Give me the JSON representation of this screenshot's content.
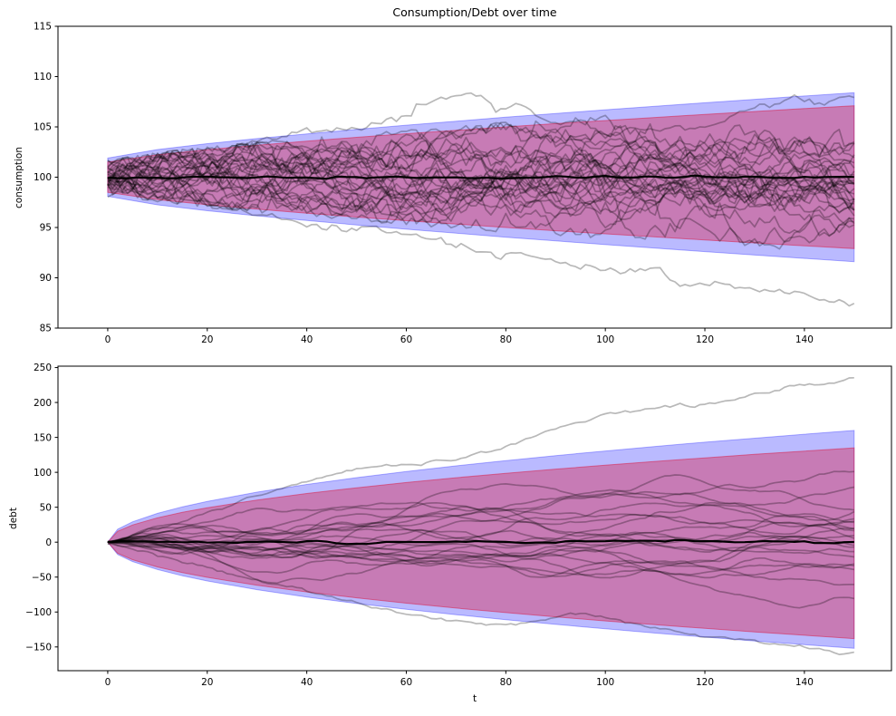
{
  "figure": {
    "title": "Consumption/Debt over time",
    "background": "#ffffff"
  },
  "styles": {
    "outer_band_fill": "rgba(0,0,255,0.27)",
    "outer_band_edge": "rgba(0,0,255,0.30)",
    "inner_band_fill": "rgba(220,20,60,0.38)",
    "inner_band_edge": "rgba(220,20,60,0.50)",
    "path_color": "rgba(0,0,0,0.28)",
    "mean_color": "#000000",
    "axis_color": "#000000",
    "text_color": "#000000"
  },
  "chart_data": [
    {
      "type": "line",
      "name": "consumption",
      "title": "Consumption/Debt over time",
      "ylabel": "consumption",
      "xlabel": "",
      "grid": false,
      "legend": null,
      "xlim": [
        -10,
        157.5
      ],
      "ylim": [
        85,
        115
      ],
      "xticks": [
        0,
        20,
        40,
        60,
        80,
        100,
        120,
        140
      ],
      "xtick_labels": [
        "0",
        "20",
        "40",
        "60",
        "80",
        "100",
        "120",
        "140"
      ],
      "yticks": [
        85,
        90,
        95,
        100,
        105,
        110,
        115
      ],
      "ytick_labels": [
        "85",
        "90",
        "95",
        "100",
        "105",
        "110",
        "115"
      ],
      "t": [
        0,
        10,
        20,
        30,
        40,
        50,
        60,
        70,
        80,
        90,
        100,
        110,
        120,
        130,
        140,
        150
      ],
      "bands": {
        "outer_upper": [
          101.9,
          102.75,
          103.33,
          103.84,
          104.31,
          104.75,
          105.17,
          105.57,
          105.96,
          106.33,
          106.7,
          107.05,
          107.4,
          107.74,
          108.07,
          108.4
        ],
        "outer_lower": [
          98.1,
          97.25,
          96.67,
          96.16,
          95.69,
          95.25,
          94.83,
          94.43,
          94.04,
          93.67,
          93.3,
          92.95,
          92.6,
          92.26,
          91.93,
          91.6
        ],
        "inner_upper": [
          101.5,
          102.23,
          102.74,
          103.17,
          103.58,
          103.96,
          104.32,
          104.66,
          105.0,
          105.32,
          105.63,
          105.94,
          106.24,
          106.53,
          106.82,
          107.1
        ],
        "inner_lower": [
          98.5,
          97.77,
          97.26,
          96.83,
          96.42,
          96.04,
          95.68,
          95.34,
          95.0,
          94.68,
          94.37,
          94.06,
          93.76,
          93.47,
          93.18,
          92.9
        ]
      },
      "mean": {
        "value": 100,
        "wiggle": 0.06
      },
      "ensemble": {
        "n_paths": 30,
        "start": 100,
        "start_spread": 0.8,
        "step_std": 0.55,
        "mean_reversion": 0.025,
        "style": "jagged",
        "seed": 11
      },
      "outlier_paths": [
        {
          "name": "low-drift",
          "noise": 0.2,
          "t": [
            0,
            8,
            16,
            24,
            32,
            40,
            48,
            55,
            62,
            70,
            78,
            84,
            90,
            96,
            103,
            110,
            118,
            126,
            134,
            142,
            150
          ],
          "v": [
            99.6,
            98.9,
            98.0,
            97.0,
            96.0,
            95.2,
            94.8,
            95.1,
            94.2,
            93.3,
            92.2,
            92.6,
            91.6,
            91.0,
            90.6,
            91.1,
            89.6,
            89.2,
            88.4,
            88.1,
            87.7
          ]
        },
        {
          "name": "high-peak",
          "noise": 0.2,
          "t": [
            0,
            15,
            30,
            42,
            52,
            60,
            68,
            73,
            78,
            83,
            88,
            95,
            102,
            110,
            118,
            126,
            132,
            138,
            143,
            150
          ],
          "v": [
            100.4,
            102.0,
            103.4,
            104.6,
            105.1,
            106.4,
            107.5,
            108.2,
            107.1,
            107.4,
            106.1,
            105.3,
            104.3,
            104.7,
            105.2,
            106.1,
            107.2,
            108.1,
            107.4,
            107.6
          ]
        }
      ]
    },
    {
      "type": "line",
      "name": "debt",
      "title": "",
      "ylabel": "debt",
      "xlabel": "t",
      "grid": false,
      "legend": null,
      "xlim": [
        -10,
        157.5
      ],
      "ylim": [
        -184,
        252
      ],
      "xticks": [
        0,
        20,
        40,
        60,
        80,
        100,
        120,
        140
      ],
      "xtick_labels": [
        "0",
        "20",
        "40",
        "60",
        "80",
        "100",
        "120",
        "140"
      ],
      "yticks": [
        -150,
        -100,
        -50,
        0,
        50,
        100,
        150,
        200,
        250
      ],
      "ytick_labels": [
        "−150",
        "−100",
        "−50",
        "0",
        "50",
        "100",
        "150",
        "200",
        "250"
      ],
      "t": [
        0,
        2,
        5,
        10,
        15,
        20,
        30,
        40,
        50,
        60,
        70,
        80,
        90,
        100,
        110,
        120,
        130,
        140,
        150
      ],
      "bands": {
        "outer_upper": [
          0,
          18.5,
          29.2,
          41.3,
          50.6,
          58.4,
          71.6,
          82.6,
          92.4,
          101.2,
          109.3,
          116.8,
          123.9,
          130.6,
          137.0,
          143.1,
          148.9,
          154.6,
          160
        ],
        "outer_lower": [
          0,
          -17.6,
          -27.8,
          -39.2,
          -48.1,
          -55.5,
          -68.0,
          -78.5,
          -87.8,
          -96.1,
          -103.8,
          -111.0,
          -117.7,
          -124.1,
          -130.2,
          -135.9,
          -141.5,
          -146.8,
          -152
        ],
        "inner_upper": [
          0,
          15.6,
          24.7,
          34.9,
          42.7,
          49.3,
          60.4,
          69.7,
          77.9,
          85.4,
          92.2,
          98.6,
          104.6,
          110.2,
          115.6,
          120.7,
          125.7,
          130.4,
          135
        ],
        "inner_lower": [
          0,
          -15.9,
          -25.2,
          -35.6,
          -43.6,
          -50.4,
          -61.7,
          -71.3,
          -79.7,
          -87.3,
          -94.3,
          -100.8,
          -106.9,
          -112.7,
          -118.2,
          -123.4,
          -128.5,
          -133.3,
          -138
        ]
      },
      "mean": {
        "value": 0,
        "wiggle": 0.8
      },
      "ensemble": {
        "n_paths": 22,
        "start": 0,
        "start_spread": 0,
        "step_std": 0.9,
        "momentum": 0.8,
        "style": "smooth",
        "seed": 5
      },
      "outlier_paths": [
        {
          "name": "high-runaway",
          "noise": 1.2,
          "t": [
            0,
            10,
            20,
            30,
            40,
            48,
            55,
            62,
            70,
            78,
            85,
            92,
            100,
            108,
            115,
            122,
            130,
            138,
            144,
            150
          ],
          "v": [
            0,
            18,
            42,
            65,
            88,
            103,
            110,
            112,
            118,
            133,
            150,
            165,
            182,
            190,
            193,
            200,
            212,
            222,
            228,
            237
          ]
        },
        {
          "name": "low-runaway",
          "noise": 1.2,
          "t": [
            0,
            12,
            25,
            38,
            50,
            58,
            66,
            74,
            80,
            88,
            95,
            105,
            115,
            125,
            135,
            143,
            150
          ],
          "v": [
            0,
            -20,
            -45,
            -68,
            -88,
            -100,
            -110,
            -118,
            -120,
            -112,
            -103,
            -115,
            -128,
            -138,
            -148,
            -153,
            -160
          ]
        }
      ]
    }
  ]
}
